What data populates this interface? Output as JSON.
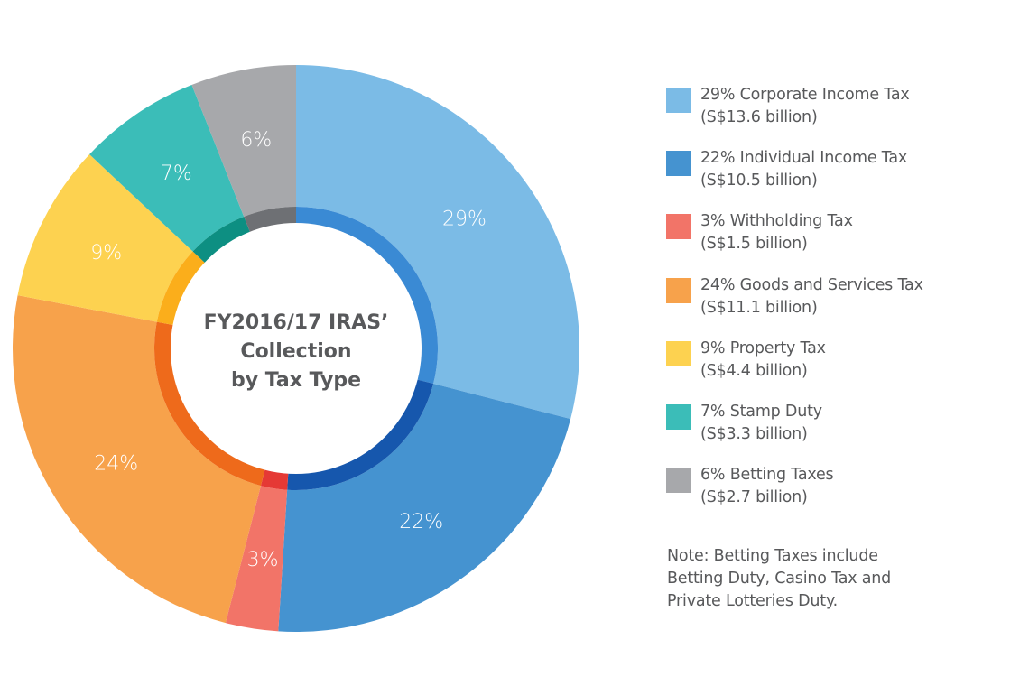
{
  "chart_data": {
    "type": "pie",
    "subtype": "donut",
    "title": "FY2016/17 IRAS' Collection by Tax Type",
    "title_lines": [
      "FY2016/17 IRAS’",
      "Collection",
      "by Tax Type"
    ],
    "unit": "%",
    "legend_position": "right",
    "slices": [
      {
        "name": "Corporate Income Tax",
        "percent": 29,
        "amount": "S$13.6 billion",
        "amount_billion": 13.6,
        "label": "29%",
        "legend_line1": "29% Corporate Income Tax",
        "legend_line2": "(S$13.6 billion)",
        "color": "#7bbbe6",
        "inner_color": "#3a8ad4"
      },
      {
        "name": "Individual Income Tax",
        "percent": 22,
        "amount": "S$10.5 billion",
        "amount_billion": 10.5,
        "label": "22%",
        "legend_line1": "22% Individual Income Tax",
        "legend_line2": "(S$10.5 billion)",
        "color": "#4593d0",
        "inner_color": "#1657ad"
      },
      {
        "name": "Withholding Tax",
        "percent": 3,
        "amount": "S$1.5 billion",
        "amount_billion": 1.5,
        "label": "3%",
        "legend_line1": "3% Withholding Tax",
        "legend_line2": "(S$1.5 billion)",
        "color": "#f27468",
        "inner_color": "#e53935"
      },
      {
        "name": "Goods and Services Tax",
        "percent": 24,
        "amount": "S$11.1 billion",
        "amount_billion": 11.1,
        "label": "24%",
        "legend_line1": "24% Goods and Services Tax",
        "legend_line2": "(S$11.1 billion)",
        "color": "#f7a24b",
        "inner_color": "#ee6a1b"
      },
      {
        "name": "Property Tax",
        "percent": 9,
        "amount": "S$4.4 billion",
        "amount_billion": 4.4,
        "label": "9%",
        "legend_line1": "9% Property Tax",
        "legend_line2": "(S$4.4 billion)",
        "color": "#fdd250",
        "inner_color": "#fbae1b"
      },
      {
        "name": "Stamp Duty",
        "percent": 7,
        "amount": "S$3.3 billion",
        "amount_billion": 3.3,
        "label": "7%",
        "legend_line1": "7% Stamp Duty",
        "legend_line2": "(S$3.3 billion)",
        "color": "#3bbdb8",
        "inner_color": "#0d8f82"
      },
      {
        "name": "Betting Taxes",
        "percent": 6,
        "amount": "S$2.7 billion",
        "amount_billion": 2.7,
        "label": "6%",
        "legend_line1": "6% Betting Taxes",
        "legend_line2": "(S$2.7 billion)",
        "color": "#a7a8ab",
        "inner_color": "#6e7074"
      }
    ],
    "note_lines": [
      "Note: Betting Taxes include",
      "Betting Duty, Casino Tax and",
      "Private Lotteries Duty."
    ]
  }
}
